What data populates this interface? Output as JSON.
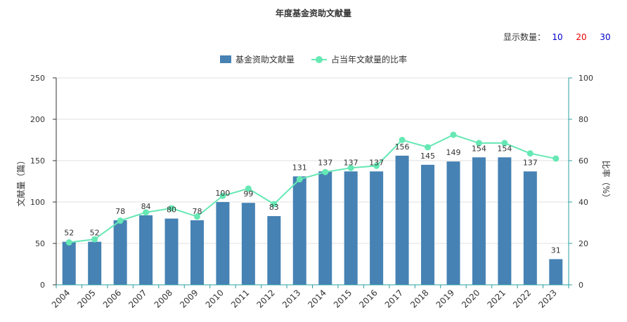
{
  "chart_title": "年度基金资助文献量",
  "count_selector": {
    "label": "显示数量：",
    "options": [
      {
        "text": "10",
        "color": "#0000cc"
      },
      {
        "text": "20",
        "color": "#e60000"
      },
      {
        "text": "30",
        "color": "#0000cc"
      }
    ]
  },
  "colors": {
    "bar": "#4682b4",
    "line": "#66e8b4",
    "axis_left": "#333333",
    "axis_right": "#2aa0a0",
    "grid": "#e0e0e0"
  },
  "chart_data": {
    "type": "bar",
    "title": "年度基金资助文献量",
    "categories": [
      "2004",
      "2005",
      "2006",
      "2007",
      "2008",
      "2009",
      "2010",
      "2011",
      "2012",
      "2013",
      "2014",
      "2015",
      "2016",
      "2017",
      "2018",
      "2019",
      "2020",
      "2021",
      "2022",
      "2023"
    ],
    "series": [
      {
        "name": "基金资助文献量",
        "type": "bar",
        "axis": "left",
        "values": [
          52,
          52,
          78,
          84,
          80,
          78,
          100,
          99,
          83,
          131,
          137,
          137,
          137,
          156,
          145,
          149,
          154,
          154,
          137,
          31
        ],
        "labels": [
          "52",
          "52",
          "78",
          "84",
          "80",
          "78",
          "100",
          "99",
          "83",
          "131",
          "137",
          "137",
          "137",
          "156",
          "145",
          "149",
          "154",
          "154",
          "137",
          "31"
        ],
        "label_shown": [
          true,
          true,
          true,
          true,
          true,
          true,
          true,
          true,
          true,
          true,
          true,
          true,
          true,
          true,
          true,
          true,
          true,
          true,
          true,
          true
        ]
      },
      {
        "name": "占当年文献量的比率",
        "type": "line",
        "axis": "right",
        "values": [
          20.5,
          22,
          31,
          35,
          37,
          33,
          43,
          46.5,
          39,
          51,
          54.5,
          56.5,
          57.5,
          70,
          66.5,
          72.5,
          68.5,
          68.5,
          63.5,
          61
        ]
      }
    ],
    "ylabel": "文献量（篇）",
    "y2label": "比率（%）",
    "ylim": [
      0,
      250
    ],
    "y2lim": [
      0,
      100
    ],
    "yticks": [
      "0",
      "50",
      "100",
      "150",
      "200",
      "250"
    ],
    "y2ticks": [
      "0",
      "20",
      "40",
      "60",
      "80",
      "100"
    ],
    "grid": true,
    "legend_position": "top-center"
  }
}
